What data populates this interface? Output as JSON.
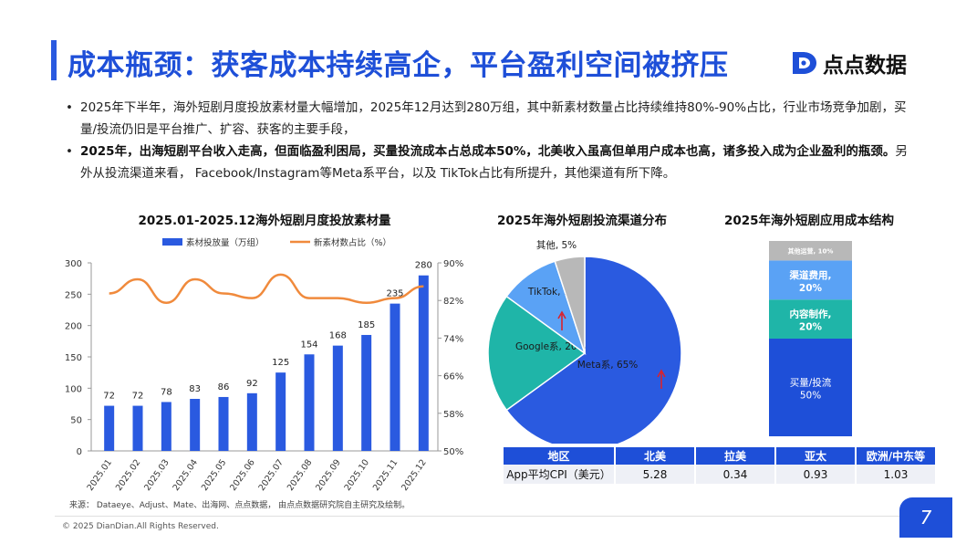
{
  "header": {
    "title": "成本瓶颈：获客成本持续高企，平台盈利空间被挤压",
    "logo_text": "点点数据",
    "accent_color": "#1e4fd8"
  },
  "bullets": [
    {
      "bold": "",
      "text": "2025年下半年，海外短剧月度投放素材量大幅增加，2025年12月达到280万组，其中新素材数量占比持续维持80%-90%占比，行业市场竞争加剧，买量/投流仍旧是平台推广、扩容、获客的主要手段，"
    },
    {
      "bold": "2025年，出海短剧平台收入走高，但面临盈利困局，买量投流成本占总成本50%，北美收入虽高但单用户成本也高，诸多投入成为企业盈利的瓶颈。",
      "text": "另外从投流渠道来看， Facebook/Instagram等Meta系平台，以及 TikTok占比有所提升，其他渠道有所下降。"
    }
  ],
  "chart_data": [
    {
      "type": "bar",
      "title": "2025.01-2025.12海外短剧月度投放素材量",
      "categories": [
        "2025.01",
        "2025.02",
        "2025.03",
        "2025.04",
        "2025.05",
        "2025.06",
        "2025.07",
        "2025.08",
        "2025.09",
        "2025.10",
        "2025.11",
        "2025.12"
      ],
      "series": [
        {
          "name": "素材投放量（万组）",
          "type": "bar",
          "axis": "left",
          "color": "#2a5ae0",
          "values": [
            72,
            72,
            78,
            83,
            86,
            92,
            125,
            154,
            168,
            185,
            235,
            280
          ]
        },
        {
          "name": "新素材数占比（%）",
          "type": "line",
          "axis": "right",
          "color": "#f08a3c",
          "values": [
            83.5,
            86.5,
            81.5,
            86.5,
            83.5,
            82.5,
            87.5,
            82.5,
            82.5,
            81.5,
            82.5,
            85
          ]
        }
      ],
      "ylim": [
        0,
        300
      ],
      "yticks": [
        0,
        50,
        100,
        150,
        200,
        250,
        300
      ],
      "y2lim": [
        50,
        90
      ],
      "y2ticks": [
        "50%",
        "58%",
        "66%",
        "74%",
        "82%",
        "90%"
      ],
      "legend": "top"
    },
    {
      "type": "pie",
      "title": "2025年海外短剧投流渠道分布",
      "slices": [
        {
          "label": "Meta系, 65%",
          "value": 65,
          "color": "#2a5ae0",
          "trend": "up"
        },
        {
          "label": "Google系, 20%",
          "value": 20,
          "color": "#1fb5a8",
          "trend": ""
        },
        {
          "label": "TikTok, 10%",
          "value": 10,
          "color": "#5aa2f5",
          "trend": "up"
        },
        {
          "label": "其他, 5%",
          "value": 5,
          "color": "#b8b8b8",
          "trend": ""
        }
      ]
    },
    {
      "type": "bar",
      "stacked": true,
      "title": "2025年海外短剧应用成本结构",
      "segments": [
        {
          "label": "买量/投流",
          "value": "50%",
          "share": 50,
          "color": "#1e4fd8"
        },
        {
          "label": "内容制作,",
          "value": "20%",
          "share": 20,
          "color": "#1fb5a8"
        },
        {
          "label": "渠道费用,",
          "value": "20%",
          "share": 20,
          "color": "#5aa2f5"
        },
        {
          "label": "其他运营, 10%",
          "value": "",
          "share": 10,
          "color": "#b8b8b8"
        }
      ]
    },
    {
      "type": "table",
      "columns": [
        "地区",
        "北美",
        "拉美",
        "亚太",
        "欧洲/中东等"
      ],
      "rows": [
        [
          "App平均CPI（美元）",
          "5.28",
          "0.34",
          "0.93",
          "1.03"
        ]
      ]
    }
  ],
  "footer": {
    "source": "来源：    Dataeye、Adjust、Mate、出海网、点点数据，    由点点数据研究院自主研究及绘制。",
    "copyright": "© 2025 DianDian.All Rights Reserved.",
    "page_number": "7"
  }
}
